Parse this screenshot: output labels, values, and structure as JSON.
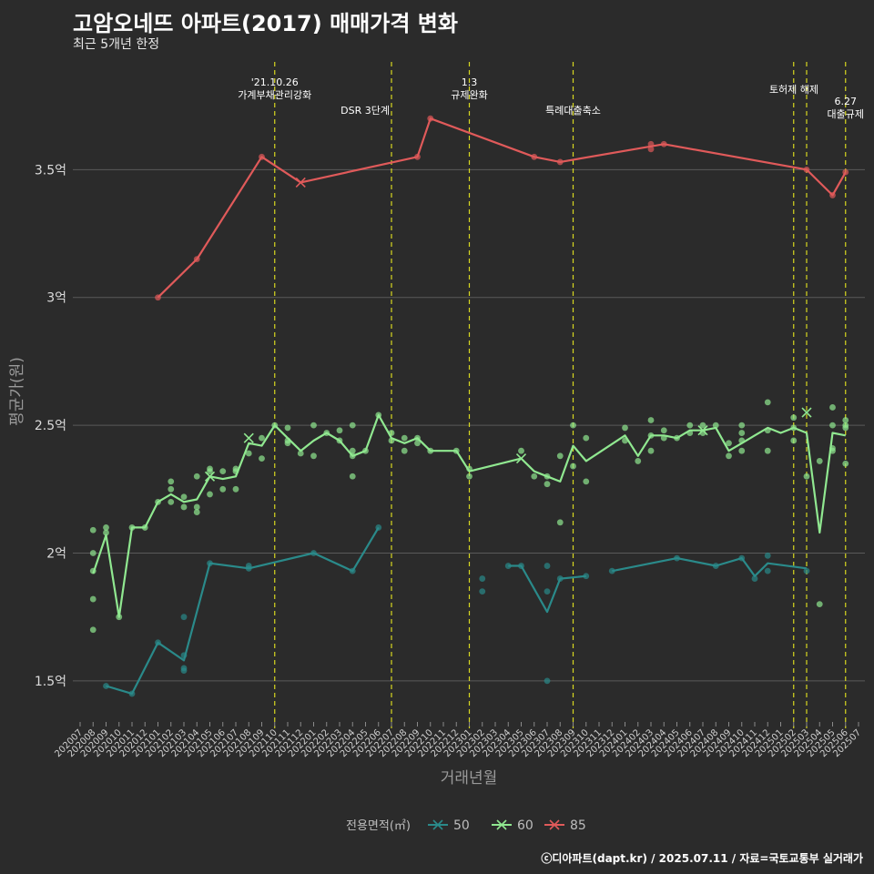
{
  "header": {
    "title": "고암오네뜨 아파트(2017) 매매가격 변화",
    "subtitle": "최근 5개년 한정"
  },
  "caption": "ⓒ디아파트(dapt.kr) / 2025.07.11 / 자료=국토교통부 실거래가",
  "colors": {
    "background": "#2b2b2b",
    "grid": "#5a5a5a",
    "s50": "#2a8a8a",
    "s60": "#90e890",
    "s85": "#e05a5a",
    "event_line": "#d8d820"
  },
  "chart_data": {
    "type": "line",
    "xlabel": "거래년월",
    "ylabel": "평균가(원)",
    "x_domain": [
      "2020-07",
      "2025-07"
    ],
    "y_range_eok": [
      1.35,
      3.95
    ],
    "y_ticks": [
      {
        "value": 1.5,
        "label": "1.5억"
      },
      {
        "value": 2.0,
        "label": "2억"
      },
      {
        "value": 2.5,
        "label": "2.5억"
      },
      {
        "value": 3.0,
        "label": "3억"
      },
      {
        "value": 3.5,
        "label": "3.5억"
      }
    ],
    "x_tick_labels": [
      "202007",
      "202008",
      "202009",
      "202010",
      "202011",
      "202012",
      "202101",
      "202102",
      "202103",
      "202104",
      "202105",
      "202106",
      "202107",
      "202108",
      "202109",
      "202110",
      "202111",
      "202112",
      "202201",
      "202202",
      "202203",
      "202204",
      "202205",
      "202206",
      "202207",
      "202208",
      "202209",
      "202210",
      "202211",
      "202212",
      "202301",
      "202302",
      "202303",
      "202304",
      "202305",
      "202306",
      "202307",
      "202308",
      "202309",
      "202310",
      "202311",
      "202312",
      "202401",
      "202402",
      "202403",
      "202404",
      "202405",
      "202406",
      "202407",
      "202408",
      "202409",
      "202410",
      "202411",
      "202412",
      "202501",
      "202502",
      "202503",
      "202504",
      "202505",
      "202506",
      "202507"
    ],
    "events": [
      {
        "month": "2021-10",
        "lines": [
          "'21.10.26",
          "가계부채관리강화"
        ]
      },
      {
        "month": "2022-07",
        "lines": [
          "DSR 3단계"
        ]
      },
      {
        "month": "2023-01",
        "lines": [
          "1.3",
          "규제완화"
        ]
      },
      {
        "month": "2023-09",
        "lines": [
          "특례대출축소"
        ]
      },
      {
        "month": "2025-02",
        "lines": []
      },
      {
        "month": "2025-03",
        "lines": [
          "토허제 해제"
        ]
      },
      {
        "month": "2025-06",
        "lines": [
          "6.27",
          "대출규제"
        ]
      }
    ],
    "legend": {
      "title": "전용면적(㎡)",
      "entries": [
        "50",
        "60",
        "85"
      ]
    },
    "series": [
      {
        "name": "50",
        "color_key": "s50",
        "segments": [
          [
            [
              "2020-09",
              1.48
            ],
            [
              "2020-11",
              1.45
            ],
            [
              "2021-01",
              1.65
            ],
            [
              "2021-03",
              1.58
            ],
            [
              "2021-05",
              1.96
            ],
            [
              "2021-08",
              1.94
            ],
            [
              "2022-01",
              2.0
            ],
            [
              "2022-04",
              1.93
            ],
            [
              "2022-06",
              2.1
            ]
          ],
          [
            [
              "2023-04",
              1.95
            ],
            [
              "2023-05",
              1.95
            ],
            [
              "2023-07",
              1.77
            ],
            [
              "2023-08",
              1.9
            ],
            [
              "2023-10",
              1.91
            ]
          ],
          [
            [
              "2023-12",
              1.93
            ],
            [
              "2024-05",
              1.98
            ],
            [
              "2024-08",
              1.95
            ],
            [
              "2024-10",
              1.98
            ],
            [
              "2024-11",
              1.91
            ],
            [
              "2024-12",
              1.96
            ],
            [
              "2025-03",
              1.94
            ]
          ]
        ],
        "points": [
          [
            "2020-09",
            1.48
          ],
          [
            "2020-11",
            1.45
          ],
          [
            "2021-01",
            1.65
          ],
          [
            "2021-03",
            1.6
          ],
          [
            "2021-03",
            1.55
          ],
          [
            "2021-03",
            1.54
          ],
          [
            "2021-03",
            1.75
          ],
          [
            "2021-05",
            1.96
          ],
          [
            "2021-08",
            1.94
          ],
          [
            "2021-08",
            1.95
          ],
          [
            "2022-01",
            2.0
          ],
          [
            "2022-04",
            1.93
          ],
          [
            "2022-06",
            2.1
          ],
          [
            "2023-02",
            1.9
          ],
          [
            "2023-02",
            1.85
          ],
          [
            "2023-04",
            1.95
          ],
          [
            "2023-05",
            1.95
          ],
          [
            "2023-07",
            1.95
          ],
          [
            "2023-07",
            1.85
          ],
          [
            "2023-07",
            1.5
          ],
          [
            "2023-08",
            1.9
          ],
          [
            "2023-10",
            1.91
          ],
          [
            "2023-12",
            1.93
          ],
          [
            "2024-05",
            1.98
          ],
          [
            "2024-08",
            1.95
          ],
          [
            "2024-10",
            1.98
          ],
          [
            "2024-11",
            1.9
          ],
          [
            "2024-12",
            1.99
          ],
          [
            "2024-12",
            1.93
          ],
          [
            "2025-03",
            1.93
          ]
        ],
        "x_marks": []
      },
      {
        "name": "60",
        "color_key": "s60",
        "segments": [
          [
            [
              "2020-08",
              1.92
            ],
            [
              "2020-09",
              2.07
            ],
            [
              "2020-10",
              1.75
            ],
            [
              "2020-11",
              2.1
            ],
            [
              "2020-12",
              2.1
            ],
            [
              "2021-01",
              2.2
            ],
            [
              "2021-02",
              2.23
            ],
            [
              "2021-03",
              2.2
            ],
            [
              "2021-04",
              2.21
            ],
            [
              "2021-05",
              2.3
            ],
            [
              "2021-06",
              2.29
            ],
            [
              "2021-07",
              2.3
            ],
            [
              "2021-08",
              2.43
            ],
            [
              "2021-09",
              2.42
            ],
            [
              "2021-10",
              2.5
            ],
            [
              "2021-11",
              2.45
            ],
            [
              "2021-12",
              2.4
            ],
            [
              "2022-01",
              2.44
            ],
            [
              "2022-02",
              2.47
            ],
            [
              "2022-03",
              2.44
            ],
            [
              "2022-04",
              2.38
            ],
            [
              "2022-05",
              2.4
            ],
            [
              "2022-06",
              2.54
            ],
            [
              "2022-07",
              2.45
            ],
            [
              "2022-08",
              2.43
            ],
            [
              "2022-09",
              2.45
            ],
            [
              "2022-10",
              2.4
            ],
            [
              "2022-12",
              2.4
            ],
            [
              "2023-01",
              2.32
            ],
            [
              "2023-05",
              2.37
            ],
            [
              "2023-06",
              2.32
            ],
            [
              "2023-07",
              2.3
            ],
            [
              "2023-08",
              2.28
            ],
            [
              "2023-09",
              2.42
            ],
            [
              "2023-10",
              2.36
            ],
            [
              "2024-01",
              2.46
            ],
            [
              "2024-02",
              2.38
            ],
            [
              "2024-03",
              2.46
            ],
            [
              "2024-04",
              2.46
            ],
            [
              "2024-05",
              2.45
            ],
            [
              "2024-06",
              2.48
            ],
            [
              "2024-07",
              2.48
            ],
            [
              "2024-08",
              2.49
            ],
            [
              "2024-09",
              2.4
            ],
            [
              "2024-10",
              2.43
            ],
            [
              "2024-11",
              2.46
            ],
            [
              "2024-12",
              2.49
            ],
            [
              "2025-01",
              2.47
            ],
            [
              "2025-02",
              2.49
            ],
            [
              "2025-03",
              2.47
            ],
            [
              "2025-04",
              2.08
            ],
            [
              "2025-05",
              2.47
            ],
            [
              "2025-06",
              2.46
            ]
          ]
        ],
        "points": [
          [
            "2020-08",
            2.09
          ],
          [
            "2020-08",
            2.0
          ],
          [
            "2020-08",
            1.93
          ],
          [
            "2020-08",
            1.82
          ],
          [
            "2020-08",
            1.7
          ],
          [
            "2020-09",
            2.1
          ],
          [
            "2020-09",
            2.08
          ],
          [
            "2020-10",
            1.75
          ],
          [
            "2020-11",
            2.1
          ],
          [
            "2020-12",
            2.1
          ],
          [
            "2021-01",
            2.2
          ],
          [
            "2021-02",
            2.28
          ],
          [
            "2021-02",
            2.25
          ],
          [
            "2021-02",
            2.2
          ],
          [
            "2021-03",
            2.22
          ],
          [
            "2021-03",
            2.18
          ],
          [
            "2021-04",
            2.3
          ],
          [
            "2021-04",
            2.18
          ],
          [
            "2021-04",
            2.16
          ],
          [
            "2021-05",
            2.33
          ],
          [
            "2021-05",
            2.32
          ],
          [
            "2021-05",
            2.23
          ],
          [
            "2021-06",
            2.32
          ],
          [
            "2021-06",
            2.25
          ],
          [
            "2021-07",
            2.33
          ],
          [
            "2021-07",
            2.32
          ],
          [
            "2021-07",
            2.25
          ],
          [
            "2021-08",
            2.39
          ],
          [
            "2021-09",
            2.45
          ],
          [
            "2021-09",
            2.37
          ],
          [
            "2021-10",
            2.5
          ],
          [
            "2021-11",
            2.49
          ],
          [
            "2021-11",
            2.44
          ],
          [
            "2021-11",
            2.43
          ],
          [
            "2021-12",
            2.39
          ],
          [
            "2022-01",
            2.5
          ],
          [
            "2022-01",
            2.38
          ],
          [
            "2022-02",
            2.47
          ],
          [
            "2022-03",
            2.48
          ],
          [
            "2022-03",
            2.44
          ],
          [
            "2022-04",
            2.5
          ],
          [
            "2022-04",
            2.4
          ],
          [
            "2022-04",
            2.38
          ],
          [
            "2022-04",
            2.3
          ],
          [
            "2022-05",
            2.4
          ],
          [
            "2022-06",
            2.54
          ],
          [
            "2022-07",
            2.47
          ],
          [
            "2022-07",
            2.44
          ],
          [
            "2022-08",
            2.45
          ],
          [
            "2022-08",
            2.4
          ],
          [
            "2022-09",
            2.45
          ],
          [
            "2022-09",
            2.43
          ],
          [
            "2022-10",
            2.4
          ],
          [
            "2022-12",
            2.4
          ],
          [
            "2023-01",
            2.33
          ],
          [
            "2023-01",
            2.3
          ],
          [
            "2023-05",
            2.4
          ],
          [
            "2023-06",
            2.3
          ],
          [
            "2023-07",
            2.3
          ],
          [
            "2023-07",
            2.27
          ],
          [
            "2023-08",
            2.38
          ],
          [
            "2023-08",
            2.12
          ],
          [
            "2023-09",
            2.5
          ],
          [
            "2023-09",
            2.34
          ],
          [
            "2023-10",
            2.45
          ],
          [
            "2023-10",
            2.28
          ],
          [
            "2024-01",
            2.49
          ],
          [
            "2024-01",
            2.44
          ],
          [
            "2024-02",
            2.36
          ],
          [
            "2024-03",
            2.52
          ],
          [
            "2024-03",
            2.46
          ],
          [
            "2024-03",
            2.4
          ],
          [
            "2024-04",
            2.48
          ],
          [
            "2024-04",
            2.45
          ],
          [
            "2024-05",
            2.45
          ],
          [
            "2024-06",
            2.5
          ],
          [
            "2024-06",
            2.47
          ],
          [
            "2024-07",
            2.5
          ],
          [
            "2024-07",
            2.47
          ],
          [
            "2024-08",
            2.5
          ],
          [
            "2024-09",
            2.43
          ],
          [
            "2024-09",
            2.38
          ],
          [
            "2024-10",
            2.5
          ],
          [
            "2024-10",
            2.47
          ],
          [
            "2024-10",
            2.44
          ],
          [
            "2024-10",
            2.4
          ],
          [
            "2024-12",
            2.59
          ],
          [
            "2024-12",
            2.48
          ],
          [
            "2024-12",
            2.4
          ],
          [
            "2025-02",
            2.53
          ],
          [
            "2025-02",
            2.49
          ],
          [
            "2025-02",
            2.44
          ],
          [
            "2025-03",
            2.3
          ],
          [
            "2025-04",
            2.36
          ],
          [
            "2025-04",
            1.8
          ],
          [
            "2025-05",
            2.57
          ],
          [
            "2025-05",
            2.5
          ],
          [
            "2025-05",
            2.41
          ],
          [
            "2025-05",
            2.4
          ],
          [
            "2025-06",
            2.52
          ],
          [
            "2025-06",
            2.5
          ],
          [
            "2025-06",
            2.49
          ],
          [
            "2025-06",
            2.35
          ]
        ],
        "x_marks": [
          [
            "2021-08",
            2.45
          ],
          [
            "2021-05",
            2.3
          ],
          [
            "2023-05",
            2.37
          ],
          [
            "2024-07",
            2.48
          ],
          [
            "2025-03",
            2.55
          ]
        ]
      },
      {
        "name": "85",
        "color_key": "s85",
        "segments": [
          [
            [
              "2021-01",
              3.0
            ],
            [
              "2021-04",
              3.15
            ],
            [
              "2021-09",
              3.55
            ],
            [
              "2021-12",
              3.45
            ],
            [
              "2022-09",
              3.55
            ],
            [
              "2022-10",
              3.7
            ],
            [
              "2023-06",
              3.55
            ],
            [
              "2023-08",
              3.53
            ],
            [
              "2024-04",
              3.6
            ],
            [
              "2025-03",
              3.5
            ],
            [
              "2025-05",
              3.4
            ],
            [
              "2025-06",
              3.49
            ]
          ]
        ],
        "points": [
          [
            "2021-01",
            3.0
          ],
          [
            "2021-04",
            3.15
          ],
          [
            "2021-09",
            3.55
          ],
          [
            "2022-09",
            3.55
          ],
          [
            "2022-10",
            3.7
          ],
          [
            "2023-06",
            3.55
          ],
          [
            "2023-08",
            3.53
          ],
          [
            "2024-03",
            3.6
          ],
          [
            "2024-03",
            3.58
          ],
          [
            "2024-04",
            3.6
          ],
          [
            "2025-03",
            3.5
          ],
          [
            "2025-05",
            3.4
          ],
          [
            "2025-06",
            3.49
          ]
        ],
        "x_marks": [
          [
            "2021-12",
            3.45
          ]
        ]
      }
    ]
  }
}
